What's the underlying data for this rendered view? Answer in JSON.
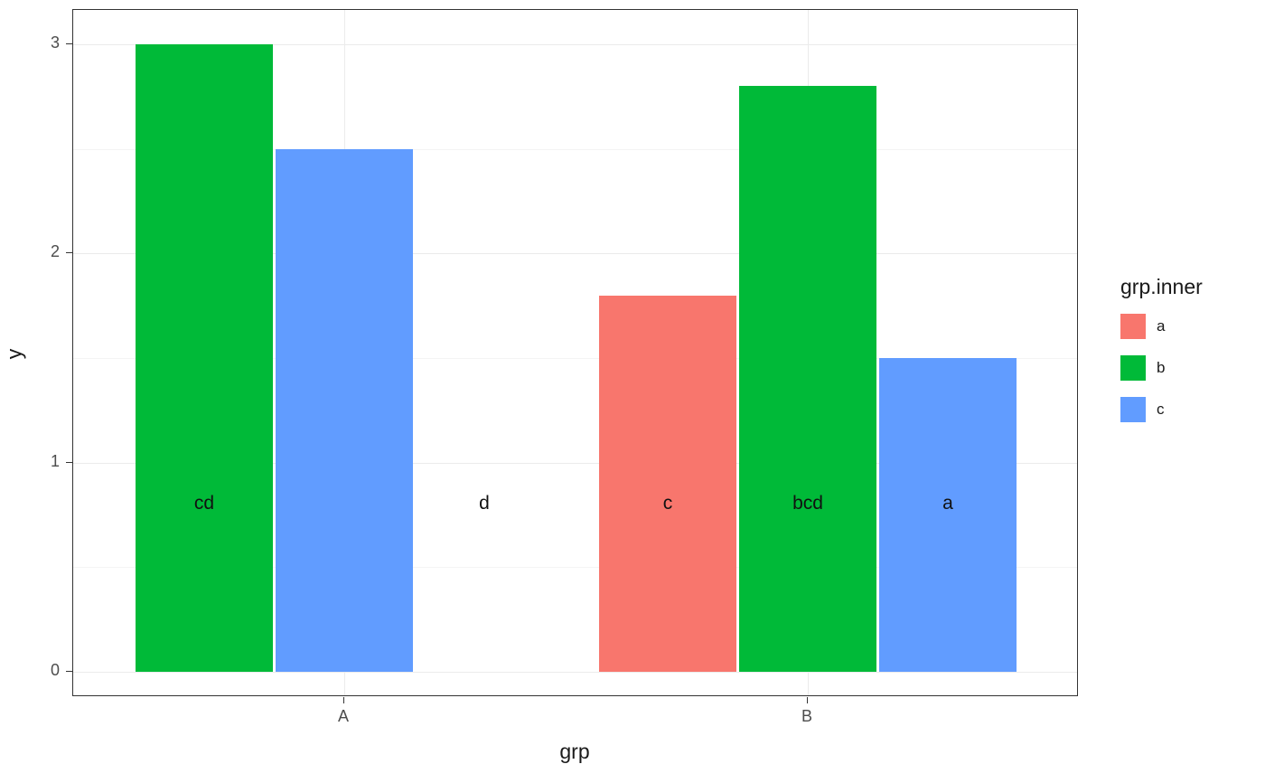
{
  "chart_data": {
    "type": "bar",
    "title": "",
    "xlabel": "grp",
    "ylabel": "y",
    "legend_title": "grp.inner",
    "legend_position": "right",
    "grid": true,
    "ylim": [
      0,
      3
    ],
    "yticks": [
      "0",
      "1",
      "2",
      "3"
    ],
    "ytick_values": [
      0,
      1,
      2,
      3
    ],
    "minor_gridlines": [
      0.5,
      1.5,
      2.5
    ],
    "categories": [
      "A",
      "B"
    ],
    "legend": [
      {
        "label": "a",
        "color": "#F8766D"
      },
      {
        "label": "b",
        "color": "#00BA38"
      },
      {
        "label": "c",
        "color": "#619CFF"
      }
    ],
    "series": [
      {
        "name": "a",
        "color": "#F8766D",
        "values": [
          null,
          1.8
        ]
      },
      {
        "name": "b",
        "color": "#00BA38",
        "values": [
          3.0,
          2.8
        ]
      },
      {
        "name": "c",
        "color": "#619CFF",
        "values": [
          2.5,
          1.5
        ]
      }
    ],
    "bars": [
      {
        "category": "A",
        "slot": 0,
        "grp_inner": "b",
        "value": 3.0,
        "letter": "cd",
        "color": "#00BA38"
      },
      {
        "category": "A",
        "slot": 1,
        "grp_inner": "c",
        "value": 2.5,
        "letter": "",
        "color": "#619CFF"
      },
      {
        "category": "A",
        "slot": 2,
        "grp_inner": null,
        "value": 0,
        "letter": "d",
        "color": null
      },
      {
        "category": "B",
        "slot": 0,
        "grp_inner": "a",
        "value": 1.8,
        "letter": "c",
        "color": "#F8766D"
      },
      {
        "category": "B",
        "slot": 1,
        "grp_inner": "b",
        "value": 2.8,
        "letter": "bcd",
        "color": "#00BA38"
      },
      {
        "category": "B",
        "slot": 2,
        "grp_inner": "c",
        "value": 1.5,
        "letter": "a",
        "color": "#619CFF"
      }
    ],
    "letter_label_y": 0.8
  }
}
